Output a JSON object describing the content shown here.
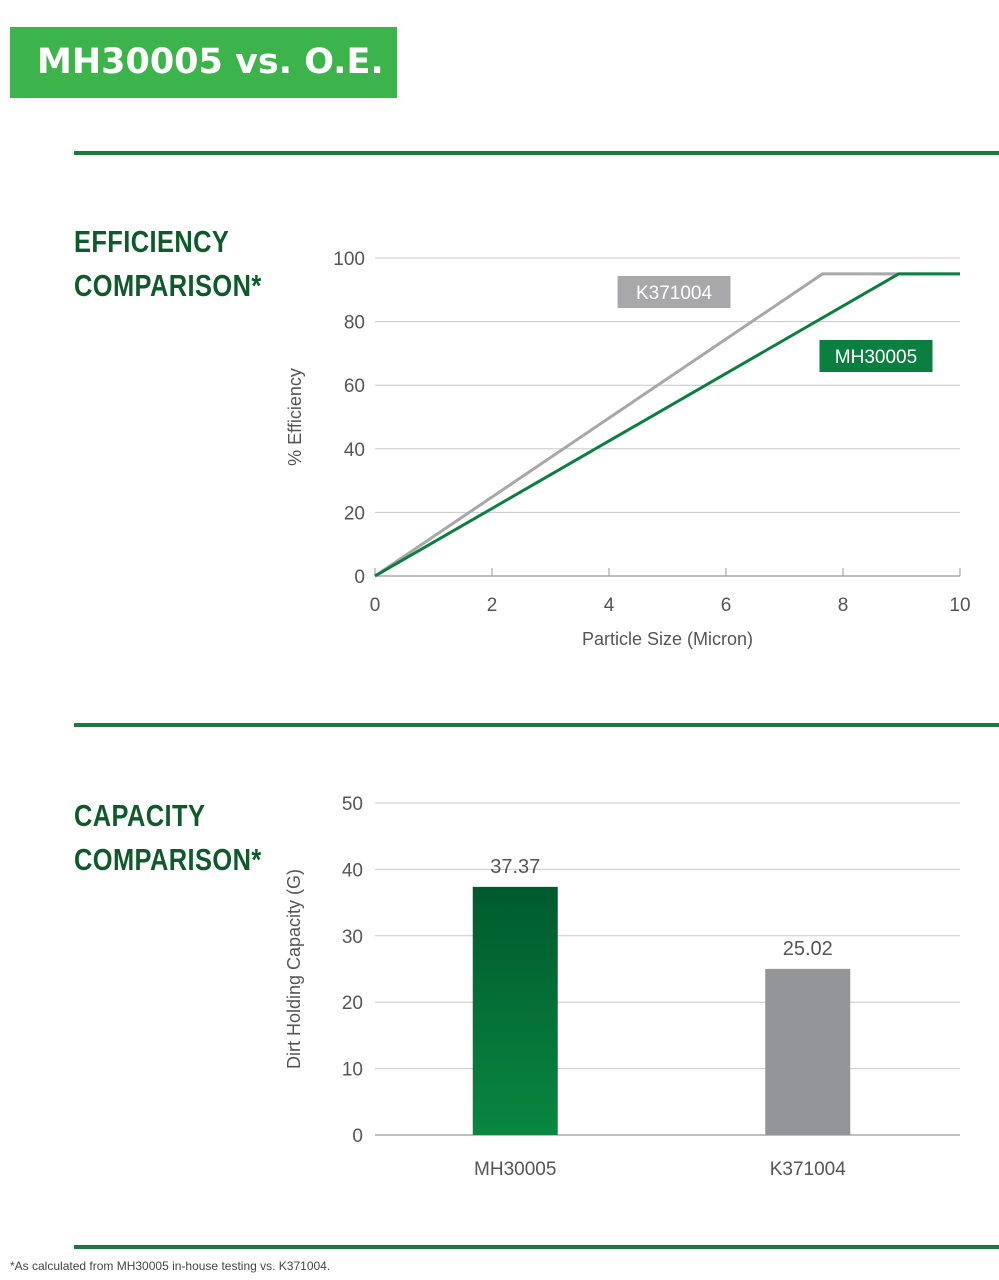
{
  "banner": {
    "title": "MH30005 vs. O.E."
  },
  "efficiency": {
    "heading_line1": "EFFICIENCY",
    "heading_line2": "COMPARISON*"
  },
  "capacity": {
    "heading_line1": "CAPACITY",
    "heading_line2": "COMPARISON*"
  },
  "footnote": "*As calculated from MH30005 in-house testing vs. K371004.",
  "colors": {
    "brand_green": "#3cb44b",
    "dark_green": "#1a7a3c",
    "mh_green": "#0a7f3f",
    "gray": "#a8a8aa"
  },
  "chart_data": [
    {
      "type": "line",
      "title": "",
      "xlabel": "Particle Size (Micron)",
      "ylabel": "% Efficiency",
      "xlim": [
        0,
        10
      ],
      "ylim": [
        0,
        100
      ],
      "xticks": [
        0,
        2,
        4,
        6,
        8,
        10
      ],
      "yticks": [
        0,
        20,
        40,
        60,
        80,
        100
      ],
      "grid": true,
      "series": [
        {
          "name": "K371004",
          "color": "#a8a8aa",
          "x": [
            0,
            7.65,
            10
          ],
          "y": [
            0,
            95,
            95
          ]
        },
        {
          "name": "MH30005",
          "color": "#0a7f3f",
          "x": [
            0,
            8.95,
            10
          ],
          "y": [
            0,
            95,
            95
          ]
        }
      ]
    },
    {
      "type": "bar",
      "title": "",
      "xlabel": "",
      "ylabel": "Dirt Holding Capacity (G)",
      "ylim": [
        0,
        50
      ],
      "yticks": [
        0,
        10,
        20,
        30,
        40,
        50
      ],
      "grid": true,
      "categories": [
        "MH30005",
        "K371004"
      ],
      "values": [
        37.37,
        25.02
      ],
      "value_labels": [
        "37.37",
        "25.02"
      ],
      "colors": [
        "#0a7f3f",
        "#939598"
      ]
    }
  ]
}
